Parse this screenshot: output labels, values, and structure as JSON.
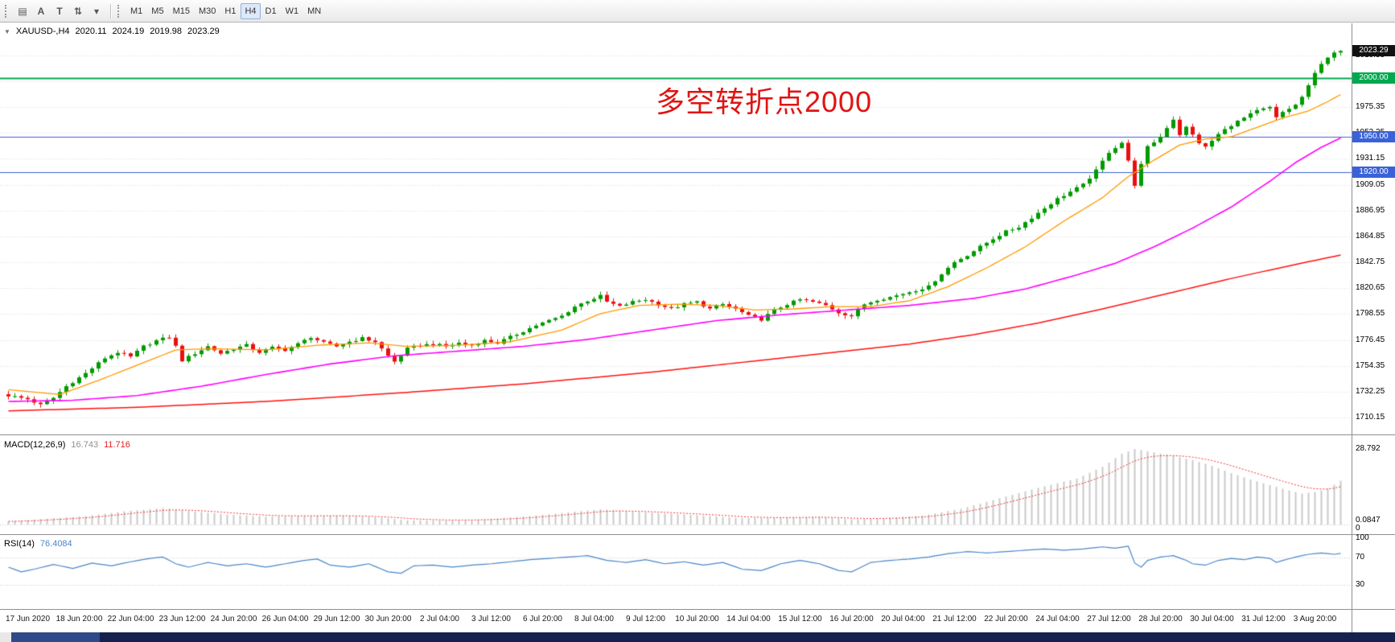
{
  "toolbar": {
    "tools": [
      {
        "name": "charts-grid-icon",
        "glyph": "▤"
      },
      {
        "name": "cursor-mode-icon",
        "glyph": "A"
      },
      {
        "name": "text-tool-icon",
        "glyph": "T"
      },
      {
        "name": "cycle-arrows-icon",
        "glyph": "⇅"
      },
      {
        "name": "tools-dropdown-caret-icon",
        "glyph": "▾"
      }
    ],
    "timeframes": [
      {
        "label": "M1",
        "selected": false
      },
      {
        "label": "M5",
        "selected": false
      },
      {
        "label": "M15",
        "selected": false
      },
      {
        "label": "M30",
        "selected": false
      },
      {
        "label": "H1",
        "selected": false
      },
      {
        "label": "H4",
        "selected": true
      },
      {
        "label": "D1",
        "selected": false
      },
      {
        "label": "W1",
        "selected": false
      },
      {
        "label": "MN",
        "selected": false
      }
    ]
  },
  "chart": {
    "info": {
      "marker_glyph": "▼",
      "symbol": "XAUUSD-,H4",
      "open": "2020.11",
      "high": "2024.19",
      "low": "2019.98",
      "close": "2023.29"
    },
    "annotation": {
      "text": "多空转折点2000",
      "color": "#e01414"
    },
    "price_axis": {
      "current": {
        "price": 2023.29,
        "label": "2023.29",
        "bg": "#111111",
        "fg": "#ffffff"
      },
      "hlines": [
        {
          "price": 2000.0,
          "label": "2000.00",
          "color": "#00a84f",
          "width": 2
        },
        {
          "price": 1950.0,
          "label": "1950.00",
          "color": "#3a62d8",
          "width": 1
        },
        {
          "price": 1920.0,
          "label": "1920.00",
          "color": "#3a62d8",
          "width": 1
        }
      ]
    }
  },
  "macd": {
    "label": "MACD(12,26,9)",
    "value_main": "16.743",
    "value_signal": "11.716",
    "axis_labels": [
      "28.792",
      "0.0847",
      "0"
    ]
  },
  "rsi": {
    "label": "RSI(14)",
    "value": "76.4084",
    "axis_labels": [
      "100",
      "70",
      "30"
    ]
  },
  "window": {
    "bottom_bar": {
      "base": "#16224d",
      "segment": "#2e4a88",
      "corner": "#e8e8e8"
    }
  },
  "chart_data": {
    "type": "candlestick",
    "symbol": "XAUUSD",
    "timeframe": "H4",
    "title": "XAUUSD-,H4 2020.11 2024.19 2019.98 2023.29",
    "n_candles": 208,
    "first_label_index": 3,
    "label_step": 8,
    "last_price": 2023.29,
    "ylim": [
      1696,
      2042
    ],
    "grid_step": 22.1,
    "y_ticks": [
      2019.55,
      1997.45,
      1975.35,
      1953.25,
      1931.15,
      1909.05,
      1886.95,
      1864.85,
      1842.75,
      1820.65,
      1798.55,
      1776.45,
      1754.35,
      1732.25,
      1710.15
    ],
    "x_labels": [
      "17 Jun 2020",
      "18 Jun 20:00",
      "22 Jun 04:00",
      "23 Jun 12:00",
      "24 Jun 20:00",
      "26 Jun 04:00",
      "29 Jun 12:00",
      "30 Jun 20:00",
      "2 Jul 04:00",
      "3 Jul 12:00",
      "6 Jul 20:00",
      "8 Jul 04:00",
      "9 Jul 12:00",
      "10 Jul 20:00",
      "14 Jul 04:00",
      "15 Jul 12:00",
      "16 Jul 20:00",
      "20 Jul 04:00",
      "21 Jul 12:00",
      "22 Jul 20:00",
      "24 Jul 04:00",
      "27 Jul 12:00",
      "28 Jul 20:00",
      "30 Jul 04:00",
      "31 Jul 12:00",
      "3 Aug 20:00"
    ],
    "colors": {
      "up": "#009a00",
      "down": "#e81010",
      "ma_fast": "#ff9900",
      "ma_mid": "#ff00ff",
      "ma_slow": "#ff1010",
      "macd_hist": "#c9c9c9",
      "macd_signal": "#f03030",
      "rsi": "#4a86c8",
      "grid": "#dcdcdc"
    },
    "close_anchors": [
      [
        0,
        1729
      ],
      [
        3,
        1726
      ],
      [
        5,
        1721
      ],
      [
        7,
        1727
      ],
      [
        9,
        1737
      ],
      [
        12,
        1748
      ],
      [
        15,
        1761
      ],
      [
        17,
        1766
      ],
      [
        19,
        1762
      ],
      [
        21,
        1771
      ],
      [
        23,
        1776
      ],
      [
        25,
        1779
      ],
      [
        26,
        1771
      ],
      [
        27,
        1759
      ],
      [
        29,
        1765
      ],
      [
        31,
        1771
      ],
      [
        33,
        1765
      ],
      [
        35,
        1769
      ],
      [
        37,
        1772
      ],
      [
        39,
        1766
      ],
      [
        41,
        1770
      ],
      [
        43,
        1768
      ],
      [
        45,
        1773
      ],
      [
        47,
        1779
      ],
      [
        49,
        1774
      ],
      [
        51,
        1771
      ],
      [
        53,
        1775
      ],
      [
        55,
        1778
      ],
      [
        57,
        1775
      ],
      [
        59,
        1763
      ],
      [
        60,
        1758
      ],
      [
        62,
        1769
      ],
      [
        64,
        1772
      ],
      [
        66,
        1773
      ],
      [
        68,
        1771
      ],
      [
        70,
        1774
      ],
      [
        72,
        1772
      ],
      [
        74,
        1776
      ],
      [
        76,
        1774
      ],
      [
        78,
        1779
      ],
      [
        80,
        1784
      ],
      [
        82,
        1789
      ],
      [
        84,
        1793
      ],
      [
        86,
        1797
      ],
      [
        88,
        1805
      ],
      [
        90,
        1810
      ],
      [
        92,
        1814
      ],
      [
        93,
        1809
      ],
      [
        95,
        1805
      ],
      [
        97,
        1809
      ],
      [
        99,
        1811
      ],
      [
        101,
        1807
      ],
      [
        103,
        1803
      ],
      [
        105,
        1807
      ],
      [
        107,
        1809
      ],
      [
        109,
        1803
      ],
      [
        111,
        1807
      ],
      [
        113,
        1803
      ],
      [
        115,
        1797
      ],
      [
        117,
        1794
      ],
      [
        119,
        1802
      ],
      [
        121,
        1807
      ],
      [
        123,
        1811
      ],
      [
        125,
        1809
      ],
      [
        127,
        1806
      ],
      [
        129,
        1800
      ],
      [
        131,
        1797
      ],
      [
        133,
        1807
      ],
      [
        135,
        1811
      ],
      [
        137,
        1813
      ],
      [
        139,
        1816
      ],
      [
        141,
        1819
      ],
      [
        143,
        1822
      ],
      [
        145,
        1833
      ],
      [
        147,
        1843
      ],
      [
        149,
        1849
      ],
      [
        151,
        1856
      ],
      [
        153,
        1863
      ],
      [
        155,
        1869
      ],
      [
        157,
        1873
      ],
      [
        159,
        1881
      ],
      [
        161,
        1889
      ],
      [
        163,
        1897
      ],
      [
        165,
        1903
      ],
      [
        167,
        1909
      ],
      [
        169,
        1921
      ],
      [
        171,
        1937
      ],
      [
        173,
        1945
      ],
      [
        174,
        1929
      ],
      [
        175,
        1909
      ],
      [
        176,
        1926
      ],
      [
        177,
        1941
      ],
      [
        179,
        1950
      ],
      [
        180,
        1958
      ],
      [
        181,
        1965
      ],
      [
        182,
        1952
      ],
      [
        183,
        1958
      ],
      [
        185,
        1945
      ],
      [
        186,
        1941
      ],
      [
        188,
        1952
      ],
      [
        190,
        1960
      ],
      [
        192,
        1966
      ],
      [
        194,
        1972
      ],
      [
        196,
        1975
      ],
      [
        197,
        1966
      ],
      [
        198,
        1971
      ],
      [
        200,
        1977
      ],
      [
        201,
        1984
      ],
      [
        202,
        1993
      ],
      [
        203,
        2004
      ],
      [
        204,
        2013
      ],
      [
        205,
        2018
      ],
      [
        206,
        2021
      ],
      [
        207,
        2023.29
      ]
    ],
    "ma_fast_anchors": [
      [
        0,
        1734
      ],
      [
        8,
        1730
      ],
      [
        14,
        1742
      ],
      [
        20,
        1755
      ],
      [
        26,
        1768
      ],
      [
        32,
        1769
      ],
      [
        40,
        1768
      ],
      [
        48,
        1772
      ],
      [
        56,
        1774
      ],
      [
        62,
        1771
      ],
      [
        70,
        1772
      ],
      [
        78,
        1775
      ],
      [
        86,
        1785
      ],
      [
        92,
        1799
      ],
      [
        98,
        1806
      ],
      [
        104,
        1807
      ],
      [
        110,
        1806
      ],
      [
        116,
        1802
      ],
      [
        122,
        1803
      ],
      [
        128,
        1805
      ],
      [
        134,
        1805
      ],
      [
        140,
        1810
      ],
      [
        146,
        1822
      ],
      [
        152,
        1838
      ],
      [
        158,
        1856
      ],
      [
        164,
        1878
      ],
      [
        170,
        1898
      ],
      [
        174,
        1916
      ],
      [
        178,
        1930
      ],
      [
        182,
        1943
      ],
      [
        186,
        1948
      ],
      [
        190,
        1950
      ],
      [
        194,
        1958
      ],
      [
        198,
        1966
      ],
      [
        202,
        1972
      ],
      [
        205,
        1980
      ],
      [
        207,
        1986
      ]
    ],
    "ma_mid_anchors": [
      [
        0,
        1724
      ],
      [
        10,
        1725
      ],
      [
        20,
        1729
      ],
      [
        30,
        1737
      ],
      [
        40,
        1747
      ],
      [
        50,
        1756
      ],
      [
        60,
        1763
      ],
      [
        70,
        1767
      ],
      [
        80,
        1771
      ],
      [
        90,
        1777
      ],
      [
        100,
        1785
      ],
      [
        110,
        1793
      ],
      [
        120,
        1798
      ],
      [
        130,
        1802
      ],
      [
        140,
        1806
      ],
      [
        150,
        1812
      ],
      [
        158,
        1820
      ],
      [
        166,
        1832
      ],
      [
        172,
        1842
      ],
      [
        178,
        1856
      ],
      [
        184,
        1872
      ],
      [
        190,
        1890
      ],
      [
        196,
        1912
      ],
      [
        200,
        1928
      ],
      [
        204,
        1941
      ],
      [
        207,
        1949
      ]
    ],
    "ma_slow_anchors": [
      [
        0,
        1716
      ],
      [
        20,
        1719
      ],
      [
        40,
        1724
      ],
      [
        60,
        1731
      ],
      [
        80,
        1739
      ],
      [
        100,
        1749
      ],
      [
        120,
        1761
      ],
      [
        140,
        1773
      ],
      [
        150,
        1781
      ],
      [
        160,
        1791
      ],
      [
        170,
        1803
      ],
      [
        180,
        1816
      ],
      [
        190,
        1829
      ],
      [
        200,
        1841
      ],
      [
        207,
        1849
      ]
    ],
    "macd": {
      "range_max": 28.792,
      "anchors": [
        [
          0,
          1.2
        ],
        [
          6,
          2.2
        ],
        [
          12,
          3.2
        ],
        [
          18,
          5.0
        ],
        [
          24,
          6.3
        ],
        [
          28,
          5.2
        ],
        [
          34,
          3.8
        ],
        [
          40,
          3.0
        ],
        [
          46,
          3.3
        ],
        [
          52,
          3.4
        ],
        [
          58,
          2.6
        ],
        [
          62,
          1.6
        ],
        [
          68,
          1.5
        ],
        [
          74,
          2.0
        ],
        [
          80,
          3.0
        ],
        [
          86,
          4.4
        ],
        [
          92,
          5.8
        ],
        [
          96,
          5.1
        ],
        [
          102,
          4.2
        ],
        [
          108,
          3.4
        ],
        [
          114,
          2.4
        ],
        [
          120,
          2.6
        ],
        [
          126,
          2.9
        ],
        [
          131,
          2.0
        ],
        [
          136,
          2.4
        ],
        [
          142,
          3.4
        ],
        [
          148,
          6.0
        ],
        [
          154,
          10.0
        ],
        [
          160,
          14.0
        ],
        [
          166,
          17.5
        ],
        [
          170,
          22.0
        ],
        [
          173,
          27.0
        ],
        [
          175,
          28.8
        ],
        [
          178,
          27.5
        ],
        [
          181,
          26.2
        ],
        [
          184,
          24.6
        ],
        [
          187,
          22.4
        ],
        [
          190,
          19.6
        ],
        [
          193,
          17.2
        ],
        [
          196,
          15.0
        ],
        [
          199,
          13.0
        ],
        [
          201,
          11.8
        ],
        [
          203,
          12.4
        ],
        [
          205,
          13.6
        ],
        [
          207,
          16.7
        ]
      ]
    },
    "rsi": {
      "levels": [
        100,
        70,
        30
      ],
      "anchors": [
        [
          0,
          56
        ],
        [
          2,
          49
        ],
        [
          4,
          53
        ],
        [
          7,
          60
        ],
        [
          10,
          54
        ],
        [
          13,
          62
        ],
        [
          16,
          58
        ],
        [
          19,
          64
        ],
        [
          22,
          69
        ],
        [
          24,
          71
        ],
        [
          26,
          61
        ],
        [
          28,
          56
        ],
        [
          31,
          63
        ],
        [
          34,
          58
        ],
        [
          37,
          61
        ],
        [
          40,
          56
        ],
        [
          43,
          61
        ],
        [
          46,
          66
        ],
        [
          48,
          68
        ],
        [
          50,
          59
        ],
        [
          53,
          56
        ],
        [
          56,
          61
        ],
        [
          59,
          49
        ],
        [
          61,
          47
        ],
        [
          63,
          58
        ],
        [
          66,
          59
        ],
        [
          69,
          56
        ],
        [
          72,
          59
        ],
        [
          75,
          61
        ],
        [
          78,
          64
        ],
        [
          81,
          67
        ],
        [
          84,
          69
        ],
        [
          87,
          71
        ],
        [
          90,
          73
        ],
        [
          93,
          66
        ],
        [
          96,
          63
        ],
        [
          99,
          67
        ],
        [
          102,
          61
        ],
        [
          105,
          64
        ],
        [
          108,
          59
        ],
        [
          111,
          63
        ],
        [
          114,
          53
        ],
        [
          117,
          51
        ],
        [
          120,
          61
        ],
        [
          123,
          66
        ],
        [
          126,
          61
        ],
        [
          129,
          51
        ],
        [
          131,
          49
        ],
        [
          134,
          63
        ],
        [
          137,
          66
        ],
        [
          140,
          68
        ],
        [
          143,
          71
        ],
        [
          146,
          76
        ],
        [
          149,
          79
        ],
        [
          152,
          77
        ],
        [
          155,
          79
        ],
        [
          158,
          81
        ],
        [
          161,
          83
        ],
        [
          164,
          81
        ],
        [
          167,
          83
        ],
        [
          170,
          86
        ],
        [
          172,
          84
        ],
        [
          174,
          87
        ],
        [
          175,
          62
        ],
        [
          176,
          56
        ],
        [
          177,
          66
        ],
        [
          179,
          71
        ],
        [
          181,
          73
        ],
        [
          183,
          66
        ],
        [
          184,
          61
        ],
        [
          186,
          59
        ],
        [
          188,
          66
        ],
        [
          190,
          69
        ],
        [
          192,
          67
        ],
        [
          194,
          71
        ],
        [
          196,
          69
        ],
        [
          197,
          63
        ],
        [
          198,
          66
        ],
        [
          200,
          71
        ],
        [
          202,
          75
        ],
        [
          204,
          77
        ],
        [
          206,
          75
        ],
        [
          207,
          76.4
        ]
      ]
    }
  }
}
